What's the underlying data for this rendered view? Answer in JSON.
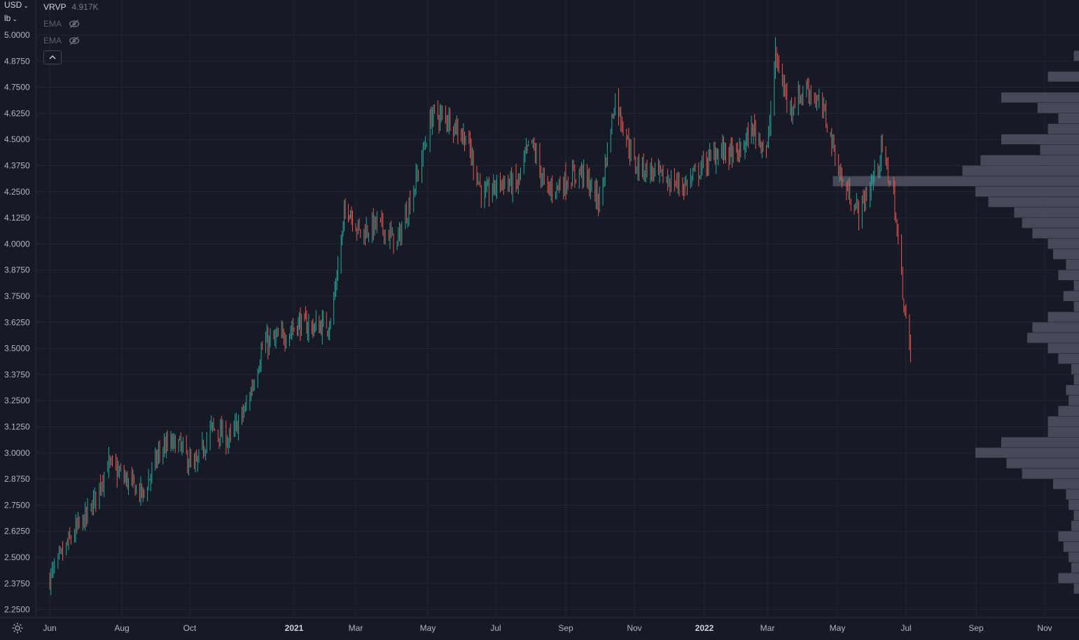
{
  "header": {
    "currency": "USD",
    "unit": "lb"
  },
  "legend": {
    "vrvp": {
      "name": "VRVP",
      "value": "4.917K"
    },
    "ema_1": {
      "name": "EMA"
    },
    "ema_2": {
      "name": "EMA"
    }
  },
  "icons": {
    "eye_hidden": "eye-crossed-icon",
    "collapse": "chevron-up-icon",
    "settings": "gear-icon"
  },
  "colors": {
    "background": "#161a25",
    "grid": "#232733",
    "up": "#26a69a",
    "down": "#ef5350",
    "volume_profile": "#4e5261",
    "text": "#b2b5be"
  },
  "chart_data": {
    "type": "bar",
    "subtype": "ohlc-price-chart-with-volume-profile",
    "y_ticks": [
      "5.0000",
      "4.8750",
      "4.7500",
      "4.6250",
      "4.5000",
      "4.3750",
      "4.2500",
      "4.1250",
      "4.0000",
      "3.8750",
      "3.7500",
      "3.6250",
      "3.5000",
      "3.3750",
      "3.2500",
      "3.1250",
      "3.0000",
      "2.8750",
      "2.7500",
      "2.6250",
      "2.5000",
      "2.3750",
      "2.2500"
    ],
    "x_ticks": [
      {
        "label": "Jun",
        "bold": false
      },
      {
        "label": "Aug",
        "bold": false
      },
      {
        "label": "Oct",
        "bold": false
      },
      {
        "label": "2021",
        "bold": true
      },
      {
        "label": "Mar",
        "bold": false
      },
      {
        "label": "May",
        "bold": false
      },
      {
        "label": "Jul",
        "bold": false
      },
      {
        "label": "Sep",
        "bold": false
      },
      {
        "label": "Nov",
        "bold": false
      },
      {
        "label": "2022",
        "bold": true
      },
      {
        "label": "Mar",
        "bold": false
      },
      {
        "label": "May",
        "bold": false
      },
      {
        "label": "Jul",
        "bold": false
      },
      {
        "label": "Sep",
        "bold": false
      },
      {
        "label": "Nov",
        "bold": false
      }
    ],
    "ylim": [
      2.25,
      5.0
    ],
    "price_path": [
      [
        "2020-06-01",
        2.4
      ],
      [
        "2020-06-15",
        2.55
      ],
      [
        "2020-06-22",
        2.62
      ],
      [
        "2020-07-05",
        2.72
      ],
      [
        "2020-07-20",
        2.95
      ],
      [
        "2020-08-05",
        2.87
      ],
      [
        "2020-08-20",
        2.8
      ],
      [
        "2020-09-05",
        3.02
      ],
      [
        "2020-09-20",
        3.05
      ],
      [
        "2020-10-05",
        2.92
      ],
      [
        "2020-10-20",
        3.12
      ],
      [
        "2020-11-05",
        3.06
      ],
      [
        "2020-11-20",
        3.22
      ],
      [
        "2020-12-05",
        3.52
      ],
      [
        "2020-12-20",
        3.55
      ],
      [
        "2021-01-05",
        3.62
      ],
      [
        "2021-01-20",
        3.6
      ],
      [
        "2021-02-05",
        3.62
      ],
      [
        "2021-02-20",
        4.2
      ],
      [
        "2021-03-05",
        4.05
      ],
      [
        "2021-03-20",
        4.1
      ],
      [
        "2021-04-05",
        4.0
      ],
      [
        "2021-04-20",
        4.28
      ],
      [
        "2021-05-05",
        4.62
      ],
      [
        "2021-05-20",
        4.6
      ],
      [
        "2021-06-05",
        4.5
      ],
      [
        "2021-06-20",
        4.22
      ],
      [
        "2021-07-05",
        4.3
      ],
      [
        "2021-07-20",
        4.28
      ],
      [
        "2021-08-01",
        4.5
      ],
      [
        "2021-08-15",
        4.25
      ],
      [
        "2021-09-01",
        4.3
      ],
      [
        "2021-09-15",
        4.35
      ],
      [
        "2021-10-01",
        4.2
      ],
      [
        "2021-10-15",
        4.7
      ],
      [
        "2021-11-01",
        4.38
      ],
      [
        "2021-11-15",
        4.35
      ],
      [
        "2021-12-01",
        4.3
      ],
      [
        "2021-12-15",
        4.28
      ],
      [
        "2022-01-01",
        4.38
      ],
      [
        "2022-01-15",
        4.45
      ],
      [
        "2022-02-01",
        4.42
      ],
      [
        "2022-02-15",
        4.55
      ],
      [
        "2022-03-01",
        4.45
      ],
      [
        "2022-03-08",
        4.9
      ],
      [
        "2022-03-20",
        4.65
      ],
      [
        "2022-04-05",
        4.75
      ],
      [
        "2022-04-20",
        4.62
      ],
      [
        "2022-05-05",
        4.3
      ],
      [
        "2022-05-20",
        4.15
      ],
      [
        "2022-06-01",
        4.3
      ],
      [
        "2022-06-10",
        4.45
      ],
      [
        "2022-06-20",
        4.22
      ],
      [
        "2022-06-28",
        3.78
      ],
      [
        "2022-07-05",
        3.45
      ]
    ],
    "volume_profile": [
      [
        4.9,
        0.02
      ],
      [
        4.8,
        0.12
      ],
      [
        4.7,
        0.3
      ],
      [
        4.65,
        0.16
      ],
      [
        4.6,
        0.08
      ],
      [
        4.55,
        0.12
      ],
      [
        4.5,
        0.3
      ],
      [
        4.45,
        0.15
      ],
      [
        4.4,
        0.38
      ],
      [
        4.35,
        0.45
      ],
      [
        4.3,
        0.95
      ],
      [
        4.25,
        0.4
      ],
      [
        4.2,
        0.35
      ],
      [
        4.15,
        0.25
      ],
      [
        4.1,
        0.22
      ],
      [
        4.05,
        0.18
      ],
      [
        4.0,
        0.12
      ],
      [
        3.95,
        0.1
      ],
      [
        3.9,
        0.05
      ],
      [
        3.85,
        0.08
      ],
      [
        3.8,
        0.02
      ],
      [
        3.75,
        0.06
      ],
      [
        3.7,
        0.02
      ],
      [
        3.65,
        0.12
      ],
      [
        3.6,
        0.18
      ],
      [
        3.55,
        0.2
      ],
      [
        3.5,
        0.12
      ],
      [
        3.45,
        0.08
      ],
      [
        3.4,
        0.03
      ],
      [
        3.35,
        0.02
      ],
      [
        3.3,
        0.05
      ],
      [
        3.25,
        0.04
      ],
      [
        3.2,
        0.08
      ],
      [
        3.15,
        0.12
      ],
      [
        3.1,
        0.12
      ],
      [
        3.05,
        0.3
      ],
      [
        3.0,
        0.4
      ],
      [
        2.95,
        0.28
      ],
      [
        2.9,
        0.22
      ],
      [
        2.85,
        0.1
      ],
      [
        2.8,
        0.05
      ],
      [
        2.75,
        0.04
      ],
      [
        2.7,
        0.02
      ],
      [
        2.65,
        0.03
      ],
      [
        2.6,
        0.08
      ],
      [
        2.55,
        0.06
      ],
      [
        2.5,
        0.04
      ],
      [
        2.45,
        0.03
      ],
      [
        2.4,
        0.08
      ],
      [
        2.35,
        0.02
      ]
    ]
  }
}
